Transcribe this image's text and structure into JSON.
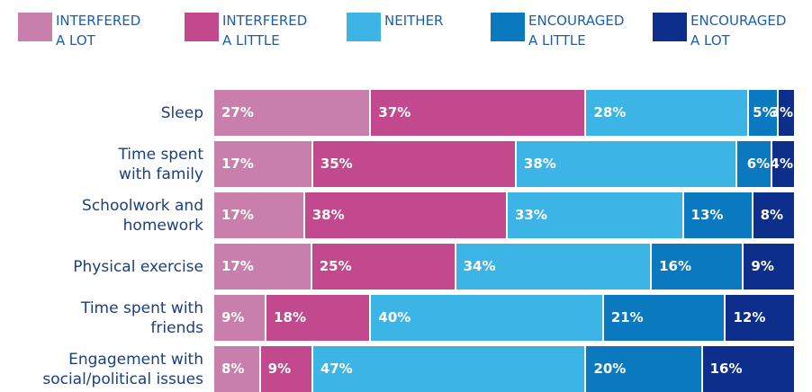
{
  "chart_data": {
    "type": "stacked-bar-horizontal",
    "categories": [
      "Sleep",
      "Time spent\nwith family",
      "Schoolwork and\nhomework",
      "Physical exercise",
      "Time spent with\nfriends",
      "Engagement with\nsocial/political issues"
    ],
    "series": [
      {
        "name": "INTERFERED\nA LOT",
        "color": "#c97fab",
        "values": [
          27,
          17,
          17,
          17,
          9,
          8
        ],
        "value_labels": [
          "27%",
          "17%",
          "17%",
          "17%",
          "9%",
          "8%"
        ]
      },
      {
        "name": "INTERFERED\nA LITTLE",
        "color": "#c2498e",
        "values": [
          37,
          35,
          38,
          25,
          18,
          9
        ],
        "value_labels": [
          "37%",
          "35%",
          "38%",
          "25%",
          "18%",
          "9%"
        ]
      },
      {
        "name": "NEITHER",
        "color": "#3db4e6",
        "values": [
          28,
          38,
          33,
          34,
          40,
          47
        ],
        "value_labels": [
          "28%",
          "38%",
          "33%",
          "34%",
          "40%",
          "47%"
        ]
      },
      {
        "name": "ENCOURAGED\nA LITTLE",
        "color": "#0a79bf",
        "values": [
          5,
          6,
          13,
          16,
          21,
          20
        ],
        "value_labels": [
          "5%",
          "6%",
          "13%",
          "16%",
          "21%",
          "20%"
        ]
      },
      {
        "name": "ENCOURAGED\nA LOT",
        "color": "#0d2e8a",
        "values": [
          3,
          4,
          8,
          9,
          12,
          16
        ],
        "value_labels": [
          "3%",
          "4%",
          "8%",
          "9%",
          "12%",
          "16%"
        ]
      }
    ]
  }
}
